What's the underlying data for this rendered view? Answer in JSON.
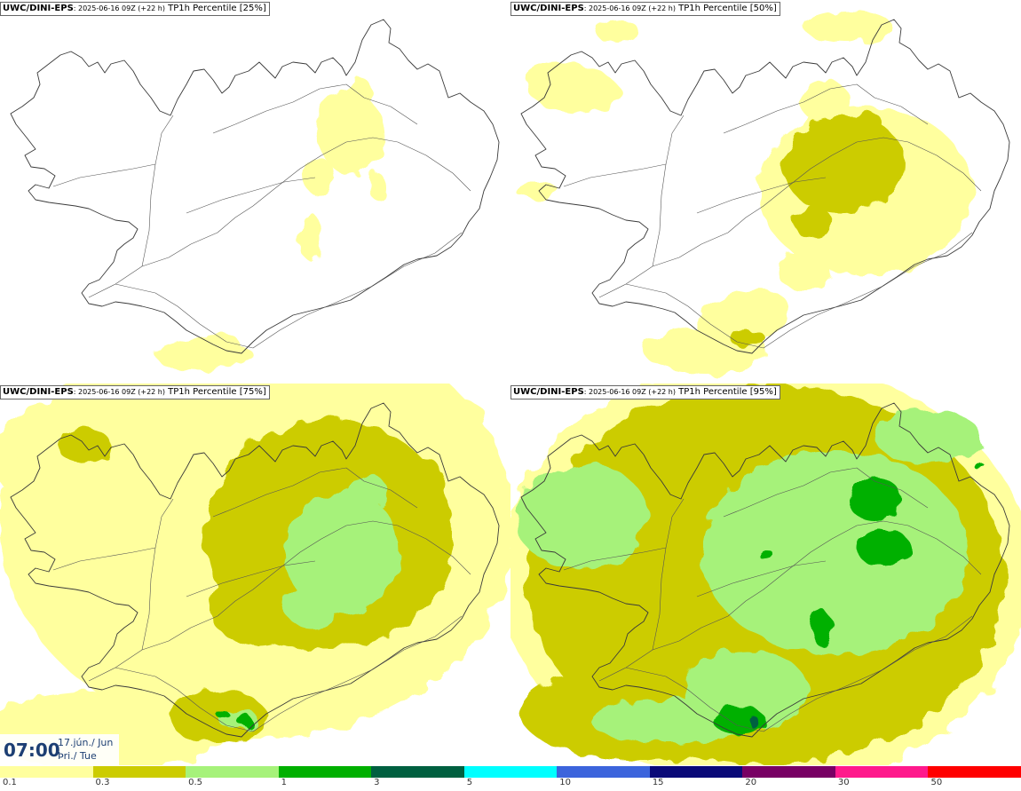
{
  "panels": [
    {
      "id": "p25",
      "model": "UWC/DINI-EPS",
      "run": ": 2025-06-16 09Z (+22 h)",
      "field": " TP1h Percentile [25%]",
      "level": 1
    },
    {
      "id": "p50",
      "model": "UWC/DINI-EPS",
      "run": ": 2025-06-16 09Z (+22 h)",
      "field": " TP1h Percentile [50%]",
      "level": 2
    },
    {
      "id": "p75",
      "model": "UWC/DINI-EPS",
      "run": ": 2025-06-16 09Z (+22 h)",
      "field": " TP1h Percentile [75%]",
      "level": 3
    },
    {
      "id": "p95",
      "model": "UWC/DINI-EPS",
      "run": ": 2025-06-16 09Z (+22 h)",
      "field": " TP1h Percentile [95%]",
      "level": 4
    }
  ],
  "valid_time": {
    "clock": "07:00",
    "date_line1": "17.jún./ Jun",
    "date_line2": "Þri./ Tue"
  },
  "legend": {
    "colors": [
      "#ffff9e",
      "#cccc00",
      "#a6f27a",
      "#00b000",
      "#006040",
      "#00ffff",
      "#3c64dc",
      "#0a0a78",
      "#780064",
      "#ff1a8c",
      "#ff0000"
    ],
    "ticks": [
      "0.1",
      "0.3",
      "0.5",
      "1",
      "3",
      "5",
      "10",
      "15",
      "20",
      "30",
      "50"
    ]
  }
}
